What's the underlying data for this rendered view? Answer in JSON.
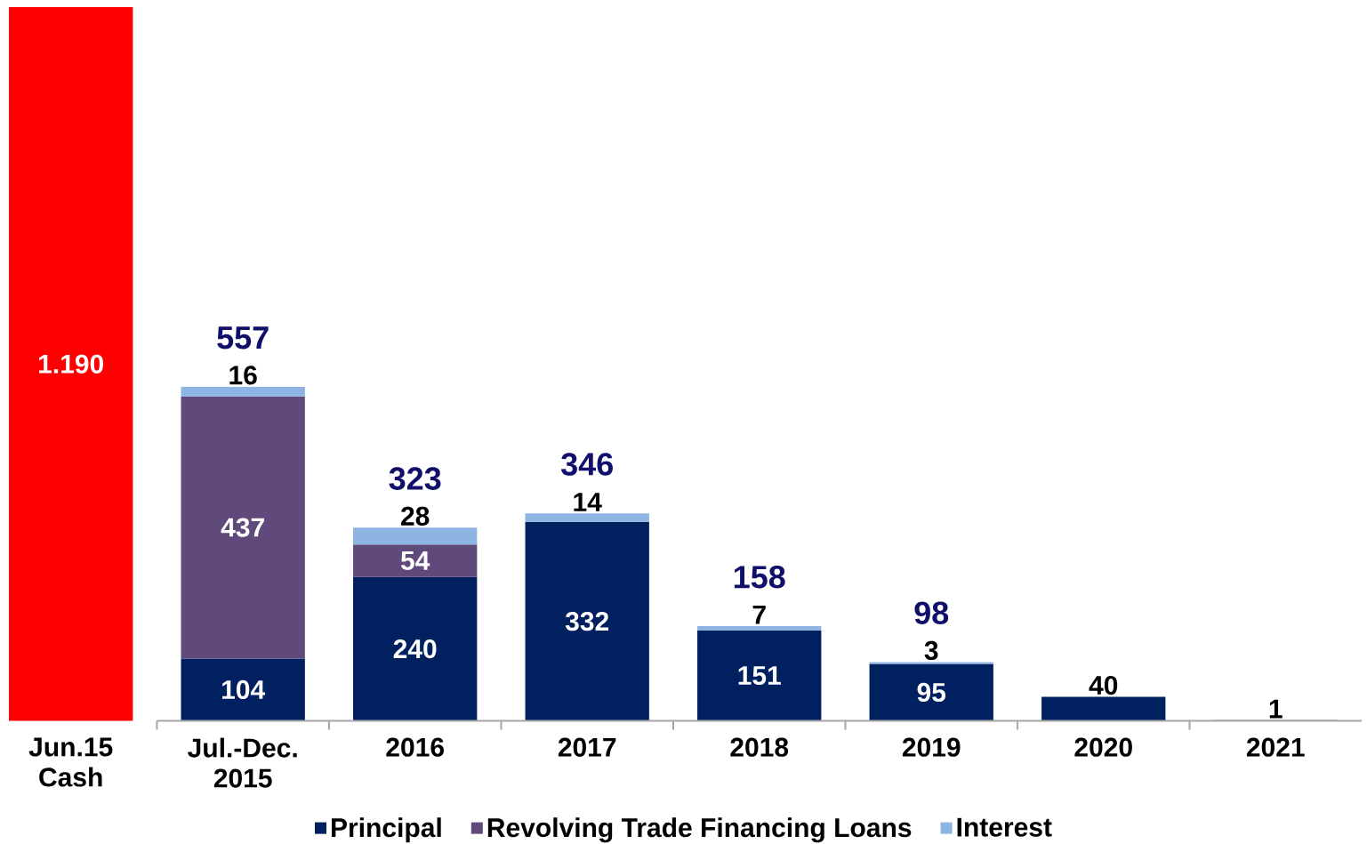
{
  "chart_data": {
    "type": "bar",
    "stacked": true,
    "categories": [
      "Jun.15 Cash",
      "Jul.-Dec. 2015",
      "2016",
      "2017",
      "2018",
      "2019",
      "2020",
      "2021"
    ],
    "series": [
      {
        "color": "#ff0000",
        "values": [
          1190,
          null,
          null,
          null,
          null,
          null,
          null,
          null
        ],
        "value_labels": [
          "1.190",
          null,
          null,
          null,
          null,
          null,
          null,
          null
        ]
      },
      {
        "name": "Principal",
        "color": "#002060",
        "values": [
          null,
          104,
          240,
          332,
          151,
          95,
          40,
          1
        ],
        "value_labels": [
          null,
          "104",
          "240",
          "332",
          "151",
          "95",
          "40",
          "1"
        ]
      },
      {
        "name": "Revolving Trade Financing Loans",
        "color": "#604a7b",
        "values": [
          null,
          437,
          54,
          null,
          null,
          null,
          null,
          null
        ],
        "value_labels": [
          null,
          "437",
          "54",
          null,
          null,
          null,
          null,
          null
        ]
      },
      {
        "name": "Interest",
        "color": "#8db4e2",
        "values": [
          null,
          16,
          28,
          14,
          7,
          3,
          null,
          null
        ],
        "value_labels": [
          null,
          "16",
          "28",
          "14",
          "7",
          "3",
          null,
          null
        ]
      }
    ],
    "totals": [
      null,
      "557",
      "323",
      "346",
      "158",
      "98",
      null,
      null
    ],
    "legend": "bottom"
  }
}
